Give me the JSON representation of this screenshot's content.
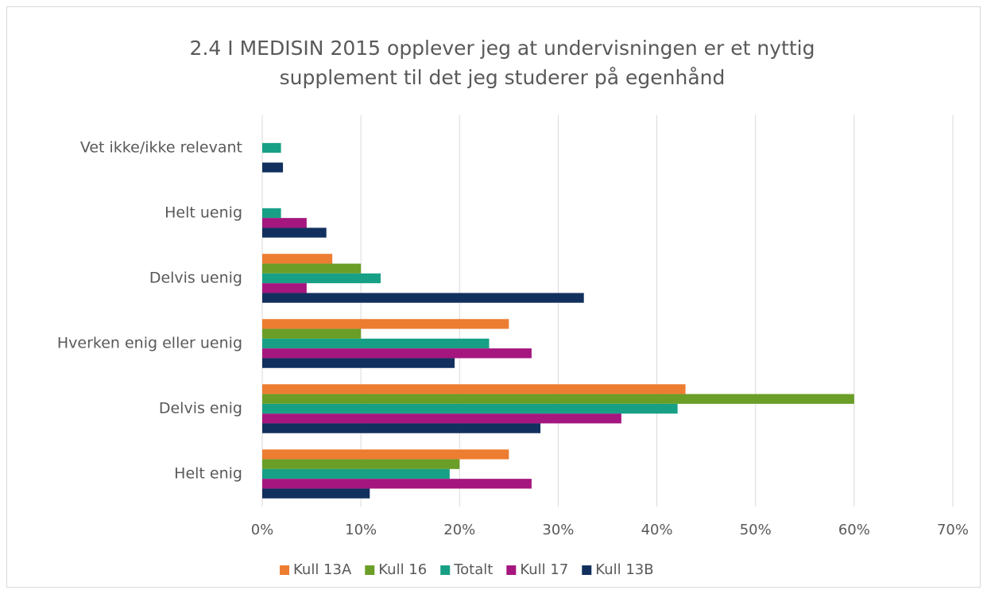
{
  "chart_data": {
    "type": "hbar",
    "title": [
      "2.4 I MEDISIN 2015 opplever jeg at undervisningen er et nyttig",
      "supplement til det jeg studerer på egenhånd"
    ],
    "categories": [
      "Vet ikke/ikke relevant",
      "Helt uenig",
      "Delvis uenig",
      "Hverken enig eller uenig",
      "Delvis enig",
      "Helt enig"
    ],
    "series": [
      {
        "name": "Kull 13A",
        "color": "#ed7d31",
        "values": [
          0,
          0,
          7.1,
          25,
          42.9,
          25
        ]
      },
      {
        "name": "Kull 16",
        "color": "#6a9e27",
        "values": [
          0,
          0,
          10,
          10,
          60,
          20
        ]
      },
      {
        "name": "Totalt",
        "color": "#17a085",
        "values": [
          1.9,
          1.9,
          12,
          23,
          42.1,
          19
        ]
      },
      {
        "name": "Kull 17",
        "color": "#a5167f",
        "values": [
          0,
          4.5,
          4.5,
          27.3,
          36.4,
          27.3
        ]
      },
      {
        "name": "Kull 13B",
        "color": "#12305e",
        "values": [
          2.1,
          6.5,
          32.6,
          19.5,
          28.2,
          10.9
        ]
      }
    ],
    "xlim": [
      0,
      70
    ],
    "xticks": [
      {
        "value": 0,
        "label": "0%"
      },
      {
        "value": 10,
        "label": "10%"
      },
      {
        "value": 20,
        "label": "20%"
      },
      {
        "value": 30,
        "label": "30%"
      },
      {
        "value": 40,
        "label": "40%"
      },
      {
        "value": 50,
        "label": "50%"
      },
      {
        "value": 60,
        "label": "60%"
      },
      {
        "value": 70,
        "label": "70%"
      }
    ],
    "grid": true,
    "legend": "bottom"
  }
}
